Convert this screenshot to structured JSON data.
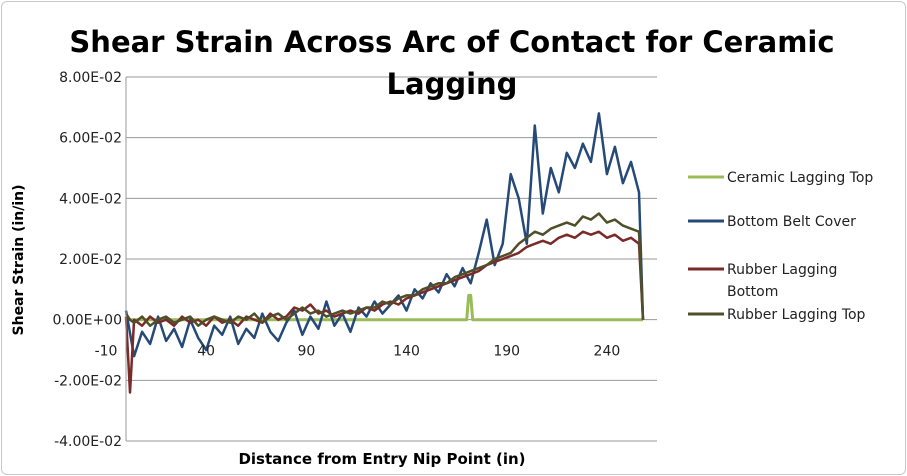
{
  "chart_data": {
    "type": "line",
    "title_lines": [
      "Shear Strain Across Arc of Contact for Ceramic",
      "Lagging"
    ],
    "xlabel": "Distance from Entry Nip Point (in)",
    "ylabel": "Shear Strain (in/in)",
    "x_ticks": [
      -10,
      40,
      90,
      140,
      190,
      240
    ],
    "x_tick_labels": [
      "-10",
      "40",
      "90",
      "140",
      "190",
      "240"
    ],
    "y_ticks": [
      0.08,
      0.06,
      0.04,
      0.02,
      0,
      -0.02,
      -0.04
    ],
    "y_tick_labels": [
      "8.00E-02",
      "6.00E-02",
      "4.00E-02",
      "2.00E-02",
      "0.00E+00",
      "-2.00E-02",
      "-4.00E-02"
    ],
    "xlim": [
      -10,
      265
    ],
    "ylim": [
      -0.04,
      0.08
    ],
    "grid": "horizontal",
    "legend_placement": "right",
    "series": [
      {
        "name": "Ceramic Lagging Top",
        "color": "#9bbb59",
        "x": [
          0,
          130,
          170,
          171,
          172,
          173,
          174,
          258
        ],
        "y": [
          0,
          0,
          0,
          0.008,
          0.008,
          0,
          0,
          0
        ]
      },
      {
        "name": "Bottom Belt Cover",
        "color": "#264a78",
        "x": [
          0,
          4,
          8,
          12,
          16,
          20,
          24,
          28,
          32,
          36,
          40,
          44,
          48,
          52,
          56,
          60,
          64,
          68,
          72,
          76,
          80,
          84,
          88,
          92,
          96,
          100,
          104,
          108,
          112,
          116,
          120,
          124,
          128,
          132,
          136,
          140,
          144,
          148,
          152,
          156,
          160,
          164,
          168,
          172,
          176,
          180,
          184,
          188,
          192,
          196,
          200,
          204,
          208,
          212,
          216,
          220,
          224,
          228,
          232,
          236,
          240,
          244,
          248,
          252,
          256,
          258
        ],
        "y": [
          0.003,
          -0.012,
          -0.004,
          -0.008,
          0.001,
          -0.007,
          -0.003,
          -0.009,
          0.0,
          -0.006,
          -0.01,
          -0.002,
          -0.005,
          0.001,
          -0.008,
          -0.003,
          -0.006,
          0.002,
          -0.004,
          -0.007,
          -0.001,
          0.003,
          -0.005,
          0.001,
          -0.003,
          0.006,
          -0.002,
          0.002,
          -0.004,
          0.004,
          0.001,
          0.006,
          0.002,
          0.005,
          0.008,
          0.003,
          0.01,
          0.007,
          0.012,
          0.009,
          0.015,
          0.011,
          0.017,
          0.012,
          0.022,
          0.033,
          0.018,
          0.025,
          0.048,
          0.04,
          0.025,
          0.064,
          0.035,
          0.05,
          0.042,
          0.055,
          0.05,
          0.058,
          0.052,
          0.068,
          0.048,
          0.057,
          0.045,
          0.052,
          0.042,
          0
        ]
      },
      {
        "name": "Rubber Lagging Bottom",
        "color": "#7b2a2a",
        "x": [
          0,
          2,
          4,
          8,
          12,
          16,
          20,
          24,
          28,
          32,
          36,
          40,
          44,
          48,
          52,
          56,
          60,
          64,
          68,
          72,
          76,
          80,
          84,
          88,
          92,
          96,
          100,
          104,
          108,
          112,
          116,
          120,
          124,
          128,
          132,
          136,
          140,
          144,
          148,
          152,
          156,
          160,
          164,
          168,
          172,
          176,
          180,
          184,
          188,
          192,
          196,
          200,
          204,
          208,
          212,
          216,
          220,
          224,
          228,
          232,
          236,
          240,
          244,
          248,
          252,
          256,
          258
        ],
        "y": [
          0.001,
          -0.024,
          0.0,
          -0.002,
          0.001,
          -0.001,
          0.0,
          -0.002,
          0.001,
          -0.001,
          0.0,
          -0.002,
          0.001,
          -0.001,
          0.0,
          -0.002,
          0.001,
          0.0,
          -0.001,
          0.002,
          0.0,
          0.001,
          0.004,
          0.003,
          0.005,
          0.002,
          0.003,
          0.001,
          0.002,
          0.003,
          0.002,
          0.004,
          0.003,
          0.005,
          0.006,
          0.005,
          0.007,
          0.008,
          0.009,
          0.01,
          0.011,
          0.012,
          0.013,
          0.014,
          0.015,
          0.016,
          0.018,
          0.019,
          0.02,
          0.021,
          0.022,
          0.024,
          0.025,
          0.026,
          0.025,
          0.027,
          0.028,
          0.027,
          0.029,
          0.028,
          0.029,
          0.027,
          0.028,
          0.026,
          0.027,
          0.025,
          0
        ]
      },
      {
        "name": "Rubber Lagging Top",
        "color": "#4f4f2a",
        "x": [
          0,
          2,
          4,
          8,
          12,
          16,
          20,
          24,
          28,
          32,
          36,
          40,
          44,
          48,
          52,
          56,
          60,
          64,
          68,
          72,
          76,
          80,
          84,
          88,
          92,
          96,
          100,
          104,
          108,
          112,
          116,
          120,
          124,
          128,
          132,
          136,
          140,
          144,
          148,
          152,
          156,
          160,
          164,
          168,
          172,
          176,
          180,
          184,
          188,
          192,
          196,
          200,
          204,
          208,
          212,
          216,
          220,
          224,
          228,
          232,
          236,
          240,
          244,
          248,
          252,
          256,
          258
        ],
        "y": [
          0.002,
          0.0,
          -0.001,
          0.001,
          -0.002,
          0.0,
          0.001,
          -0.001,
          0.0,
          0.001,
          -0.002,
          0.0,
          0.001,
          0.0,
          -0.001,
          0.001,
          0.0,
          0.002,
          -0.001,
          0.001,
          0.002,
          0.0,
          0.002,
          0.004,
          0.002,
          0.003,
          0.001,
          0.002,
          0.003,
          0.002,
          0.003,
          0.004,
          0.004,
          0.006,
          0.005,
          0.007,
          0.008,
          0.008,
          0.01,
          0.011,
          0.012,
          0.012,
          0.014,
          0.015,
          0.016,
          0.017,
          0.018,
          0.02,
          0.021,
          0.022,
          0.025,
          0.027,
          0.029,
          0.028,
          0.03,
          0.031,
          0.032,
          0.031,
          0.034,
          0.033,
          0.035,
          0.032,
          0.033,
          0.031,
          0.03,
          0.029,
          0
        ]
      }
    ],
    "legend_label_lines": [
      [
        "Ceramic Lagging Top"
      ],
      [
        "Bottom Belt Cover"
      ],
      [
        "Rubber Lagging",
        "Bottom"
      ],
      [
        "Rubber Lagging Top"
      ]
    ]
  }
}
